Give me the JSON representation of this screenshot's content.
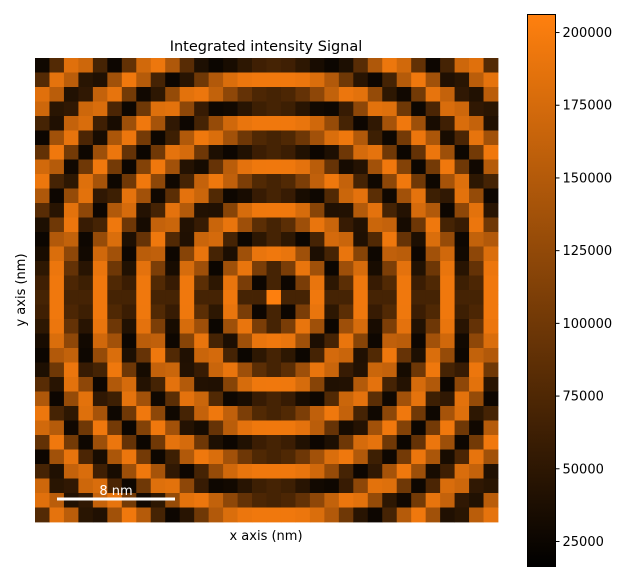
{
  "chart_data": {
    "type": "heatmap",
    "title": "Integrated intensity Signal",
    "xlabel": "x axis (nm)",
    "ylabel": "y axis (nm)",
    "scalebar_label": "8 nm",
    "colormap": {
      "low": "#000000",
      "high": "#ff800e"
    },
    "colorbar": {
      "range": [
        16400,
        206200
      ],
      "ticks": [
        25000,
        50000,
        75000,
        100000,
        125000,
        150000,
        175000,
        200000
      ],
      "tick_labels": [
        "25000",
        "50000",
        "75000",
        "100000",
        "125000",
        "150000",
        "175000",
        "200000"
      ]
    },
    "grid": false,
    "values": [
      [
        28000,
        78000,
        183000,
        169000,
        68000,
        26000,
        89000,
        172000,
        193000,
        147000,
        82000,
        38000,
        25000,
        34000,
        50000,
        63000,
        68000,
        63000,
        50000,
        34000,
        25000,
        38000,
        82000,
        147000,
        193000,
        172000,
        89000,
        26000,
        68000,
        169000,
        183000,
        78000
      ],
      [
        78000,
        187000,
        155000,
        47000,
        40000,
        136000,
        195000,
        151000,
        68000,
        26000,
        46000,
        99000,
        149000,
        179000,
        192000,
        195000,
        195000,
        195000,
        192000,
        179000,
        149000,
        99000,
        46000,
        26000,
        68000,
        151000,
        195000,
        136000,
        40000,
        47000,
        155000,
        187000
      ],
      [
        183000,
        155000,
        41000,
        52000,
        162000,
        188000,
        102000,
        29000,
        50000,
        127000,
        185000,
        192000,
        161000,
        122000,
        91000,
        73000,
        68000,
        73000,
        91000,
        122000,
        161000,
        192000,
        185000,
        127000,
        50000,
        29000,
        102000,
        188000,
        162000,
        52000,
        41000,
        155000
      ],
      [
        169000,
        47000,
        52000,
        169000,
        178000,
        72000,
        27000,
        99000,
        182000,
        185000,
        122000,
        57000,
        27000,
        30000,
        46000,
        62000,
        68000,
        62000,
        46000,
        30000,
        27000,
        57000,
        122000,
        185000,
        182000,
        99000,
        27000,
        72000,
        178000,
        169000,
        52000,
        47000
      ],
      [
        68000,
        40000,
        162000,
        178000,
        63000,
        34000,
        133000,
        195000,
        140000,
        52000,
        26000,
        68000,
        128000,
        171000,
        190000,
        195000,
        195000,
        195000,
        190000,
        171000,
        128000,
        68000,
        26000,
        52000,
        140000,
        195000,
        133000,
        34000,
        63000,
        178000,
        162000,
        40000
      ],
      [
        26000,
        136000,
        188000,
        72000,
        34000,
        144000,
        192000,
        103000,
        27000,
        62000,
        148000,
        194000,
        179000,
        137000,
        98000,
        75000,
        68000,
        75000,
        98000,
        137000,
        179000,
        194000,
        148000,
        62000,
        27000,
        103000,
        192000,
        144000,
        34000,
        72000,
        188000,
        136000
      ],
      [
        89000,
        195000,
        102000,
        27000,
        133000,
        192000,
        91000,
        25000,
        100000,
        187000,
        175000,
        98000,
        38000,
        26000,
        41000,
        60000,
        68000,
        60000,
        41000,
        26000,
        38000,
        98000,
        175000,
        187000,
        100000,
        25000,
        91000,
        192000,
        133000,
        27000,
        102000,
        195000
      ],
      [
        172000,
        151000,
        29000,
        99000,
        195000,
        103000,
        25000,
        114000,
        195000,
        137000,
        43000,
        33000,
        92000,
        155000,
        186000,
        194000,
        195000,
        194000,
        186000,
        155000,
        92000,
        33000,
        43000,
        137000,
        195000,
        114000,
        25000,
        103000,
        195000,
        99000,
        29000,
        151000
      ],
      [
        193000,
        68000,
        50000,
        182000,
        140000,
        27000,
        100000,
        195000,
        121000,
        28000,
        68000,
        162000,
        194000,
        159000,
        109000,
        77000,
        68000,
        77000,
        109000,
        159000,
        194000,
        162000,
        68000,
        28000,
        121000,
        195000,
        100000,
        27000,
        140000,
        182000,
        50000,
        68000
      ],
      [
        147000,
        26000,
        127000,
        185000,
        52000,
        62000,
        187000,
        137000,
        28000,
        84000,
        186000,
        167000,
        77000,
        27000,
        34000,
        57000,
        68000,
        57000,
        34000,
        27000,
        77000,
        167000,
        186000,
        84000,
        28000,
        137000,
        187000,
        62000,
        52000,
        185000,
        127000,
        26000
      ],
      [
        82000,
        46000,
        185000,
        122000,
        26000,
        148000,
        175000,
        43000,
        68000,
        186000,
        150000,
        42000,
        40000,
        117000,
        176000,
        194000,
        195000,
        194000,
        176000,
        117000,
        40000,
        42000,
        150000,
        186000,
        68000,
        43000,
        175000,
        148000,
        26000,
        122000,
        185000,
        46000
      ],
      [
        38000,
        99000,
        192000,
        57000,
        68000,
        194000,
        98000,
        33000,
        162000,
        167000,
        42000,
        57000,
        166000,
        190000,
        134000,
        84000,
        68000,
        84000,
        134000,
        190000,
        166000,
        57000,
        42000,
        167000,
        162000,
        33000,
        98000,
        194000,
        68000,
        57000,
        192000,
        99000
      ],
      [
        25000,
        149000,
        161000,
        27000,
        128000,
        179000,
        38000,
        92000,
        194000,
        77000,
        40000,
        166000,
        174000,
        68000,
        25000,
        50000,
        68000,
        50000,
        25000,
        68000,
        174000,
        166000,
        40000,
        77000,
        194000,
        92000,
        38000,
        179000,
        128000,
        27000,
        161000,
        149000
      ],
      [
        34000,
        179000,
        122000,
        30000,
        171000,
        137000,
        26000,
        155000,
        159000,
        27000,
        117000,
        190000,
        68000,
        37000,
        135000,
        190000,
        195000,
        190000,
        135000,
        37000,
        68000,
        190000,
        117000,
        27000,
        159000,
        155000,
        26000,
        137000,
        171000,
        30000,
        122000,
        179000
      ],
      [
        50000,
        192000,
        91000,
        46000,
        190000,
        98000,
        41000,
        186000,
        109000,
        34000,
        176000,
        134000,
        25000,
        135000,
        190000,
        107000,
        68000,
        107000,
        190000,
        135000,
        25000,
        134000,
        176000,
        34000,
        109000,
        186000,
        41000,
        98000,
        190000,
        46000,
        91000,
        192000
      ],
      [
        63000,
        195000,
        73000,
        62000,
        195000,
        75000,
        60000,
        194000,
        77000,
        57000,
        194000,
        84000,
        50000,
        190000,
        107000,
        26000,
        68000,
        26000,
        107000,
        190000,
        50000,
        84000,
        194000,
        57000,
        77000,
        194000,
        60000,
        75000,
        195000,
        62000,
        73000,
        195000
      ],
      [
        68000,
        195000,
        68000,
        68000,
        195000,
        68000,
        68000,
        195000,
        68000,
        68000,
        195000,
        68000,
        68000,
        195000,
        68000,
        68000,
        205000,
        68000,
        68000,
        195000,
        68000,
        68000,
        195000,
        68000,
        68000,
        195000,
        68000,
        68000,
        195000,
        68000,
        68000,
        195000
      ],
      [
        63000,
        195000,
        73000,
        62000,
        195000,
        75000,
        60000,
        194000,
        77000,
        57000,
        194000,
        84000,
        50000,
        190000,
        107000,
        26000,
        68000,
        26000,
        107000,
        190000,
        50000,
        84000,
        194000,
        57000,
        77000,
        194000,
        60000,
        75000,
        195000,
        62000,
        73000,
        195000
      ],
      [
        50000,
        192000,
        91000,
        46000,
        190000,
        98000,
        41000,
        186000,
        109000,
        34000,
        176000,
        134000,
        25000,
        135000,
        190000,
        107000,
        68000,
        107000,
        190000,
        135000,
        25000,
        134000,
        176000,
        34000,
        109000,
        186000,
        41000,
        98000,
        190000,
        46000,
        91000,
        192000
      ],
      [
        34000,
        179000,
        122000,
        30000,
        171000,
        137000,
        26000,
        155000,
        159000,
        27000,
        117000,
        190000,
        68000,
        37000,
        135000,
        190000,
        195000,
        190000,
        135000,
        37000,
        68000,
        190000,
        117000,
        27000,
        159000,
        155000,
        26000,
        137000,
        171000,
        30000,
        122000,
        179000
      ],
      [
        25000,
        149000,
        161000,
        27000,
        128000,
        179000,
        38000,
        92000,
        194000,
        77000,
        40000,
        166000,
        174000,
        68000,
        25000,
        50000,
        68000,
        50000,
        25000,
        68000,
        174000,
        166000,
        40000,
        77000,
        194000,
        92000,
        38000,
        179000,
        128000,
        27000,
        161000,
        149000
      ],
      [
        38000,
        99000,
        192000,
        57000,
        68000,
        194000,
        98000,
        33000,
        162000,
        167000,
        42000,
        57000,
        166000,
        190000,
        134000,
        84000,
        68000,
        84000,
        134000,
        190000,
        166000,
        57000,
        42000,
        167000,
        162000,
        33000,
        98000,
        194000,
        68000,
        57000,
        192000,
        99000
      ],
      [
        82000,
        46000,
        185000,
        122000,
        26000,
        148000,
        175000,
        43000,
        68000,
        186000,
        150000,
        42000,
        40000,
        117000,
        176000,
        194000,
        195000,
        194000,
        176000,
        117000,
        40000,
        42000,
        150000,
        186000,
        68000,
        43000,
        175000,
        148000,
        26000,
        122000,
        185000,
        46000
      ],
      [
        147000,
        26000,
        127000,
        185000,
        52000,
        62000,
        187000,
        137000,
        28000,
        84000,
        186000,
        167000,
        77000,
        27000,
        34000,
        57000,
        68000,
        57000,
        34000,
        27000,
        77000,
        167000,
        186000,
        84000,
        28000,
        137000,
        187000,
        62000,
        52000,
        185000,
        127000,
        26000
      ],
      [
        193000,
        68000,
        50000,
        182000,
        140000,
        27000,
        100000,
        195000,
        121000,
        28000,
        68000,
        162000,
        194000,
        159000,
        109000,
        77000,
        68000,
        77000,
        109000,
        159000,
        194000,
        162000,
        68000,
        28000,
        121000,
        195000,
        100000,
        27000,
        140000,
        182000,
        50000,
        68000
      ],
      [
        172000,
        151000,
        29000,
        99000,
        195000,
        103000,
        25000,
        114000,
        195000,
        137000,
        43000,
        33000,
        92000,
        155000,
        186000,
        194000,
        195000,
        194000,
        186000,
        155000,
        92000,
        33000,
        43000,
        137000,
        195000,
        114000,
        25000,
        103000,
        195000,
        99000,
        29000,
        151000
      ],
      [
        89000,
        195000,
        102000,
        27000,
        133000,
        192000,
        91000,
        25000,
        100000,
        187000,
        175000,
        98000,
        38000,
        26000,
        41000,
        60000,
        68000,
        60000,
        41000,
        26000,
        38000,
        98000,
        175000,
        187000,
        100000,
        25000,
        91000,
        192000,
        133000,
        27000,
        102000,
        195000
      ],
      [
        26000,
        136000,
        188000,
        72000,
        34000,
        144000,
        192000,
        103000,
        27000,
        62000,
        148000,
        194000,
        179000,
        137000,
        98000,
        75000,
        68000,
        75000,
        98000,
        137000,
        179000,
        194000,
        148000,
        62000,
        27000,
        103000,
        192000,
        144000,
        34000,
        72000,
        188000,
        136000
      ],
      [
        68000,
        40000,
        162000,
        178000,
        63000,
        34000,
        133000,
        195000,
        140000,
        52000,
        26000,
        68000,
        128000,
        171000,
        190000,
        195000,
        195000,
        195000,
        190000,
        171000,
        128000,
        68000,
        26000,
        52000,
        140000,
        195000,
        133000,
        34000,
        63000,
        178000,
        162000,
        40000
      ],
      [
        169000,
        47000,
        52000,
        169000,
        178000,
        72000,
        27000,
        99000,
        182000,
        185000,
        122000,
        57000,
        27000,
        30000,
        46000,
        62000,
        68000,
        62000,
        46000,
        30000,
        27000,
        57000,
        122000,
        185000,
        182000,
        99000,
        27000,
        72000,
        178000,
        169000,
        52000,
        47000
      ],
      [
        183000,
        155000,
        41000,
        52000,
        162000,
        188000,
        102000,
        29000,
        50000,
        127000,
        185000,
        192000,
        161000,
        122000,
        91000,
        73000,
        68000,
        73000,
        91000,
        122000,
        161000,
        192000,
        185000,
        127000,
        50000,
        29000,
        102000,
        188000,
        162000,
        52000,
        41000,
        155000
      ],
      [
        78000,
        187000,
        155000,
        47000,
        40000,
        136000,
        195000,
        151000,
        68000,
        26000,
        46000,
        99000,
        149000,
        179000,
        192000,
        195000,
        195000,
        195000,
        192000,
        179000,
        149000,
        99000,
        46000,
        26000,
        68000,
        151000,
        195000,
        136000,
        40000,
        47000,
        155000,
        187000
      ]
    ]
  }
}
